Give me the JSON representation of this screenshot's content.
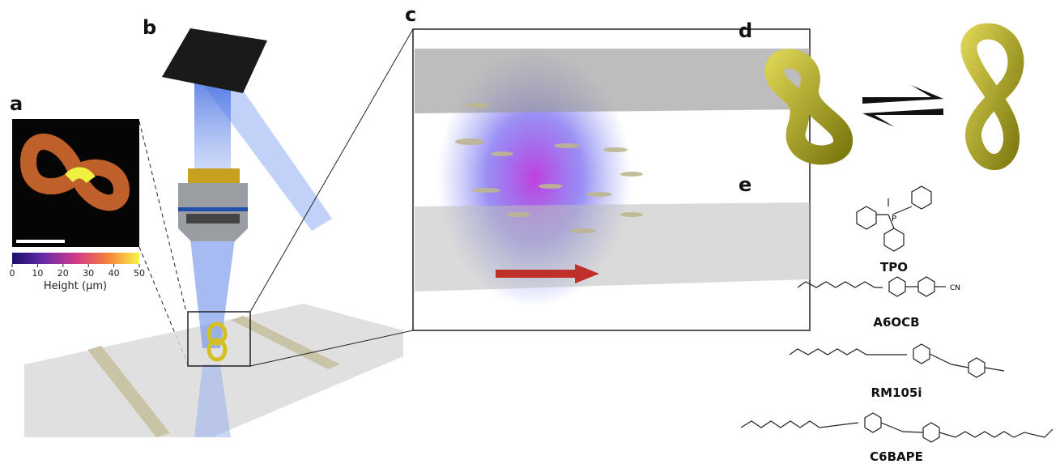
{
  "panels": {
    "a": {
      "label": "a",
      "colorbar": {
        "title": "Height (μm)",
        "range": [
          0,
          50
        ],
        "ticks": [
          0,
          10,
          20,
          30,
          40,
          50
        ]
      }
    },
    "b": {
      "label": "b"
    },
    "c": {
      "label": "c"
    },
    "d": {
      "label": "d"
    },
    "e": {
      "label": "e",
      "compounds": [
        "TPO",
        "A6OCB",
        "RM105i",
        "C6BAPE"
      ],
      "atoms": [
        "P",
        "CN"
      ]
    }
  }
}
